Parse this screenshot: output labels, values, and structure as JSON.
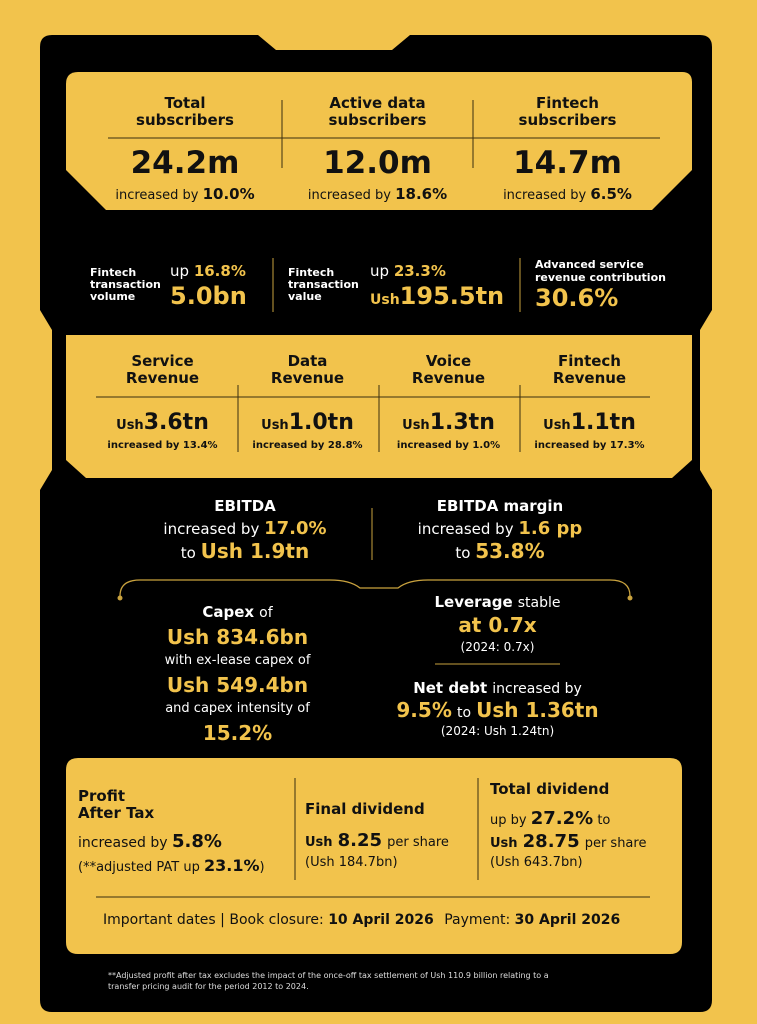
{
  "colors": {
    "yellow": "#f2c34c",
    "black": "#000000",
    "gold_line": "#c9a23e"
  },
  "subscribers": [
    {
      "title_1": "Total",
      "title_2": "subscribers",
      "value": "24.2m",
      "prefix": "increased by",
      "change": "10.0%"
    },
    {
      "title_1": "Active data",
      "title_2": "subscribers",
      "value": "12.0m",
      "prefix": "increased by",
      "change": "18.6%"
    },
    {
      "title_1": "Fintech",
      "title_2": "subscribers",
      "value": "14.7m",
      "prefix": "increased by",
      "change": "6.5%"
    }
  ],
  "fintech_metrics": {
    "volume": {
      "label_1": "Fintech",
      "label_2": "transaction",
      "label_3": "volume",
      "up_word": "up",
      "change": "16.8%",
      "value": "5.0bn"
    },
    "value": {
      "label_1": "Fintech",
      "label_2": "transaction",
      "label_3": "value",
      "up_word": "up",
      "change": "23.3%",
      "currency": "Ush",
      "value": "195.5tn"
    },
    "advanced": {
      "label_1": "Advanced service",
      "label_2": "revenue contribution",
      "value": "30.6%"
    }
  },
  "revenues": [
    {
      "title_1": "Service",
      "title_2": "Revenue",
      "currency": "Ush",
      "value": "3.6tn",
      "change": "increased by 13.4%"
    },
    {
      "title_1": "Data",
      "title_2": "Revenue",
      "currency": "Ush",
      "value": "1.0tn",
      "change": "increased by 28.8%"
    },
    {
      "title_1": "Voice",
      "title_2": "Revenue",
      "currency": "Ush",
      "value": "1.3tn",
      "change": "increased by 1.0%"
    },
    {
      "title_1": "Fintech",
      "title_2": "Revenue",
      "currency": "Ush",
      "value": "1.1tn",
      "change": "increased by 17.3%"
    }
  ],
  "ebitda": {
    "title": "EBITDA",
    "prefix": "increased by",
    "change": "17.0%",
    "to_word": "to",
    "value": "Ush 1.9tn"
  },
  "ebitda_margin": {
    "title": "EBITDA margin",
    "prefix": "increased by",
    "change": "1.6 pp",
    "to_word": "to",
    "value": "53.8%"
  },
  "capex": {
    "title": "Capex",
    "of_word": "of",
    "value": "Ush 834.6bn",
    "line_2": "with ex-lease capex of",
    "ex_lease_value": "Ush 549.4bn",
    "line_3": "and capex intensity of",
    "intensity": "15.2%"
  },
  "leverage": {
    "title": "Leverage",
    "status": "stable",
    "value": "at 0.7x",
    "previous": "(2024: 0.7x)"
  },
  "net_debt": {
    "title": "Net debt",
    "suffix": "increased by",
    "change": "9.5%",
    "to_word": "to",
    "value": "Ush 1.36tn",
    "previous": "(2024: Ush 1.24tn)"
  },
  "profit": {
    "title_1": "Profit",
    "title_2": "After Tax",
    "prefix": "increased by",
    "change": "5.8%",
    "adjusted_label": "(**adjusted PAT up",
    "adjusted_change": "23.1%",
    "adjusted_close": ")"
  },
  "final_dividend": {
    "title": "Final dividend",
    "currency": "Ush",
    "value": "8.25",
    "per_share": "per share",
    "total": "(Ush 184.7bn)"
  },
  "total_dividend": {
    "title": "Total dividend",
    "prefix": "up by",
    "change": "27.2%",
    "to_word": "to",
    "currency": "Ush",
    "value": "28.75",
    "per_share": "per share",
    "total": "(Ush 643.7bn)"
  },
  "dates": {
    "label": "Important dates |",
    "book_label": "Book closure:",
    "book_date": "10 April 2026",
    "payment_label": "Payment:",
    "payment_date": "30 April 2026"
  },
  "footnote_1": "**Adjusted profit after tax excludes the impact of the once-off tax settlement of Ush 110.9 billion relating to a",
  "footnote_2": "transfer pricing audit for the period 2012 to 2024."
}
